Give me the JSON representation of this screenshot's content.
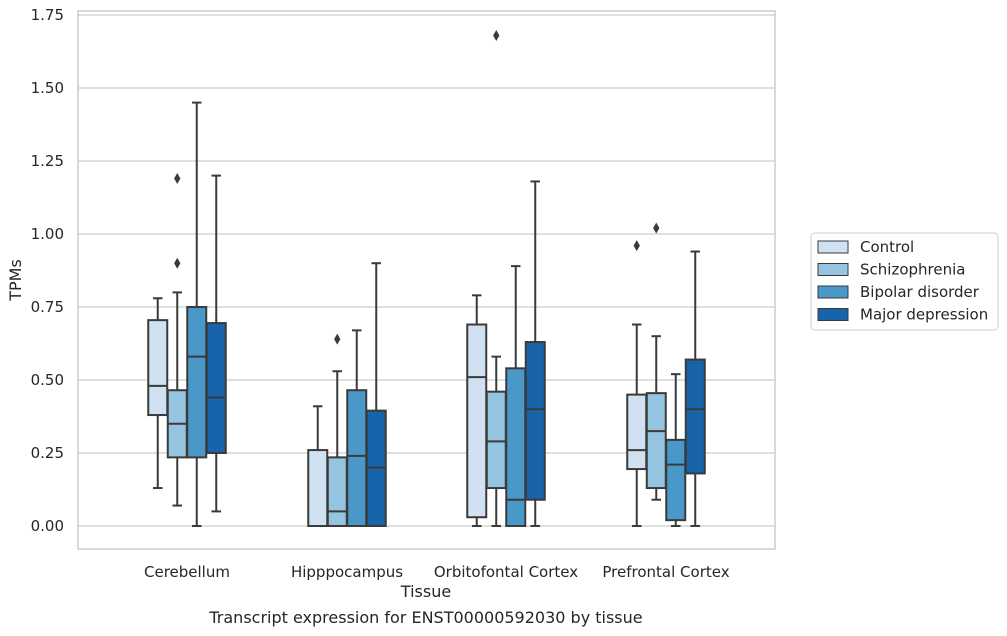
{
  "chart_data": {
    "type": "box",
    "xlabel": "Tissue",
    "ylabel": "TPMs",
    "caption": "Transcript expression for ENST00000592030 by tissue",
    "ylim": [
      -0.08,
      1.76
    ],
    "yticks": [
      "0.00",
      "0.25",
      "0.50",
      "0.75",
      "1.00",
      "1.25",
      "1.50",
      "1.75"
    ],
    "ytick_values": [
      0,
      0.25,
      0.5,
      0.75,
      1.0,
      1.25,
      1.5,
      1.75
    ],
    "grid": "horizontal",
    "legend_placement": "right, outside plot",
    "categories": [
      "Cerebellum",
      "Hipppocampus",
      "Orbitofontal Cortex",
      "Prefrontal Cortex"
    ],
    "series": [
      {
        "name": "Control",
        "color": "#d0e1f2",
        "boxes": [
          {
            "whislo": 0.13,
            "q1": 0.38,
            "med": 0.48,
            "q3": 0.705,
            "whishi": 0.78,
            "fliers": []
          },
          {
            "whislo": 0.0,
            "q1": 0.0,
            "med": 0.0,
            "q3": 0.26,
            "whishi": 0.41,
            "fliers": []
          },
          {
            "whislo": 0.0,
            "q1": 0.03,
            "med": 0.51,
            "q3": 0.69,
            "whishi": 0.79,
            "fliers": []
          },
          {
            "whislo": 0.0,
            "q1": 0.195,
            "med": 0.26,
            "q3": 0.45,
            "whishi": 0.69,
            "fliers": [
              0.96
            ]
          }
        ]
      },
      {
        "name": "Schizophrenia",
        "color": "#94c4df",
        "boxes": [
          {
            "whislo": 0.07,
            "q1": 0.235,
            "med": 0.35,
            "q3": 0.465,
            "whishi": 0.8,
            "fliers": [
              0.9,
              1.19
            ]
          },
          {
            "whislo": 0.0,
            "q1": 0.0,
            "med": 0.05,
            "q3": 0.235,
            "whishi": 0.53,
            "fliers": [
              0.64
            ]
          },
          {
            "whislo": 0.0,
            "q1": 0.13,
            "med": 0.29,
            "q3": 0.46,
            "whishi": 0.58,
            "fliers": [
              1.68
            ]
          },
          {
            "whislo": 0.09,
            "q1": 0.13,
            "med": 0.325,
            "q3": 0.455,
            "whishi": 0.65,
            "fliers": [
              1.02
            ]
          }
        ]
      },
      {
        "name": "Bipolar disorder",
        "color": "#4a98c9",
        "boxes": [
          {
            "whislo": 0.0,
            "q1": 0.235,
            "med": 0.58,
            "q3": 0.75,
            "whishi": 1.45,
            "fliers": []
          },
          {
            "whislo": 0.0,
            "q1": 0.0,
            "med": 0.24,
            "q3": 0.465,
            "whishi": 0.67,
            "fliers": []
          },
          {
            "whislo": 0.0,
            "q1": 0.0,
            "med": 0.09,
            "q3": 0.54,
            "whishi": 0.89,
            "fliers": []
          },
          {
            "whislo": 0.0,
            "q1": 0.02,
            "med": 0.21,
            "q3": 0.295,
            "whishi": 0.52,
            "fliers": []
          }
        ]
      },
      {
        "name": "Major depression",
        "color": "#1764ab",
        "boxes": [
          {
            "whislo": 0.05,
            "q1": 0.25,
            "med": 0.44,
            "q3": 0.695,
            "whishi": 1.2,
            "fliers": []
          },
          {
            "whislo": 0.0,
            "q1": 0.0,
            "med": 0.2,
            "q3": 0.395,
            "whishi": 0.9,
            "fliers": []
          },
          {
            "whislo": 0.0,
            "q1": 0.09,
            "med": 0.4,
            "q3": 0.63,
            "whishi": 1.18,
            "fliers": []
          },
          {
            "whislo": 0.0,
            "q1": 0.18,
            "med": 0.4,
            "q3": 0.57,
            "whishi": 0.94,
            "fliers": []
          }
        ]
      }
    ]
  }
}
